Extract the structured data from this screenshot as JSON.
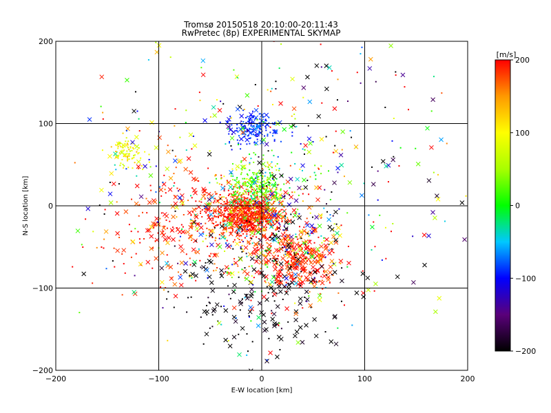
{
  "chart_data": {
    "type": "scatter",
    "title": "Tromsø 20150518 20:10:00-20:11:43",
    "subtitle": "RwPretec (8p) EXPERIMENTAL SKYMAP",
    "xlabel": "E-W location [km]",
    "ylabel": "N-S location [km]",
    "xlim": [
      -200,
      200
    ],
    "ylim": [
      -200,
      200
    ],
    "xticks": [
      "−200",
      "−100",
      "0",
      "100",
      "200"
    ],
    "yticks": [
      "200",
      "100",
      "0",
      "−100",
      "−200"
    ],
    "grid": true,
    "colorbar": {
      "label": "[m/s]",
      "range": [
        -200,
        200
      ],
      "ticks": [
        "200",
        "100",
        "0",
        "−100",
        "−200"
      ]
    },
    "markers": [
      "x",
      "dot"
    ],
    "clusters": [
      {
        "cx": -15,
        "cy": -10,
        "sx": 18,
        "sy": 14,
        "n": 900,
        "vmean": 190,
        "vsd": 25,
        "xfrac": 0.15
      },
      {
        "cx": -5,
        "cy": 25,
        "sx": 15,
        "sy": 15,
        "n": 300,
        "vmean": 30,
        "vsd": 40,
        "xfrac": 0.05
      },
      {
        "cx": -10,
        "cy": 95,
        "sx": 12,
        "sy": 10,
        "n": 160,
        "vmean": -90,
        "vsd": 15,
        "xfrac": 0.2
      },
      {
        "cx": -130,
        "cy": 65,
        "sx": 8,
        "sy": 10,
        "n": 90,
        "vmean": 95,
        "vsd": 20,
        "xfrac": 0.1
      },
      {
        "cx": 35,
        "cy": -65,
        "sx": 20,
        "sy": 18,
        "n": 260,
        "vmean": 190,
        "vsd": 25,
        "xfrac": 0.6
      },
      {
        "cx": -80,
        "cy": -25,
        "sx": 35,
        "sy": 35,
        "n": 220,
        "vmean": 190,
        "vsd": 25,
        "xfrac": 0.5
      },
      {
        "cx": 0,
        "cy": -110,
        "sx": 40,
        "sy": 45,
        "n": 180,
        "vmean": -200,
        "vsd": 10,
        "xfrac": 0.6
      },
      {
        "cx": 10,
        "cy": -40,
        "sx": 35,
        "sy": 35,
        "n": 260,
        "vmean": 0,
        "vsd": 150,
        "xfrac": 0.25
      },
      {
        "cx": 0,
        "cy": 20,
        "sx": 95,
        "sy": 95,
        "n": 520,
        "vmean": 0,
        "vsd": 170,
        "xfrac": 0.35
      }
    ]
  }
}
